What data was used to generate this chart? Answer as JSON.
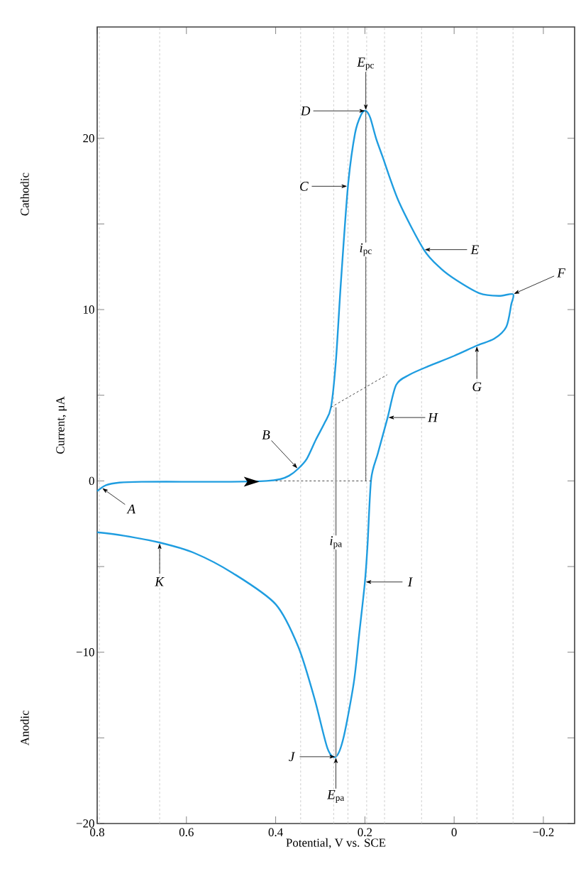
{
  "chart_data": {
    "type": "line",
    "xlabel": "Potential, V vs. SCE",
    "ylabel": "Current, μA",
    "xlim": [
      0.8,
      -0.27
    ],
    "ylim": [
      -20,
      26.5
    ],
    "xticks": [
      0.8,
      0.6,
      0.4,
      0.2,
      0,
      {
        "value": -0.2,
        "label": "−0.2"
      }
    ],
    "yticks": [
      {
        "value": -20,
        "label": "−20"
      },
      {
        "value": -15,
        "label": null
      },
      {
        "value": -10,
        "label": "−10"
      },
      {
        "value": -5,
        "label": null
      },
      0,
      {
        "value": 5,
        "label": null
      },
      10,
      {
        "value": 15,
        "label": null
      },
      20
    ],
    "series": [
      {
        "color": "#1f9de0",
        "x": [
          0.8,
          0.78,
          0.75,
          0.7,
          0.6,
          0.5,
          0.42,
          0.39,
          0.37,
          0.35,
          0.33,
          0.31,
          0.29,
          0.276,
          0.265,
          0.254,
          0.238,
          0.222,
          0.208,
          0.198,
          0.188,
          0.175,
          0.16,
          0.124,
          0.068,
          0.03,
          -0.006,
          -0.057,
          -0.1,
          -0.132,
          -0.128,
          -0.117,
          -0.09,
          -0.051,
          0.0,
          0.057,
          0.1,
          0.13,
          0.149,
          0.171,
          0.186,
          0.194,
          0.2,
          0.213,
          0.225,
          0.248,
          0.265,
          0.284,
          0.313,
          0.349,
          0.4,
          0.495,
          0.583,
          0.66,
          0.74,
          0.8
        ],
        "values": [
          -0.6,
          -0.25,
          -0.1,
          -0.05,
          -0.05,
          -0.05,
          0,
          0.1,
          0.3,
          0.7,
          1.3,
          2.4,
          3.4,
          4.3,
          7,
          11.5,
          17.2,
          20.3,
          21.4,
          21.6,
          21.2,
          20.0,
          18.9,
          16.3,
          13.5,
          12.4,
          11.7,
          10.95,
          10.8,
          10.9,
          10.3,
          9.0,
          8.3,
          7.9,
          7.3,
          6.7,
          6.2,
          5.6,
          3.7,
          1.6,
          0.1,
          -3.7,
          -5.9,
          -9,
          -11.8,
          -15.0,
          -16.1,
          -15.6,
          -12.7,
          -9.7,
          -7.2,
          -5.4,
          -4.2,
          -3.6,
          -3.2,
          -3.0
        ]
      },
      {
        "color": "#333333",
        "line_style": "dashed",
        "x": [
          0.4,
          0.186
        ],
        "values": [
          0,
          0
        ]
      },
      {
        "color": "#333333",
        "line_style": "dashed",
        "x": [
          0.276,
          0.15
        ],
        "values": [
          4.3,
          6.2
        ]
      },
      {
        "color": "#333333",
        "line_style": "solid",
        "x": [
          0.198,
          0.198
        ],
        "values": [
          0,
          21.6
        ]
      },
      {
        "color": "#a0a0a0",
        "line_style": "solid",
        "x": [
          0.265,
          0.265
        ],
        "values": [
          4.3,
          -16.1
        ]
      }
    ],
    "ref_lines": [
      {
        "axis": "x",
        "value": 0.795,
        "color": "#c8c8c8",
        "line_style": "dashed"
      },
      {
        "axis": "x",
        "value": 0.66,
        "color": "#c8c8c8",
        "line_style": "dashed"
      },
      {
        "axis": "x",
        "value": 0.344,
        "color": "#c8c8c8",
        "line_style": "dashed"
      },
      {
        "axis": "x",
        "value": 0.27,
        "color": "#c8c8c8",
        "line_style": "dashed"
      },
      {
        "axis": "x",
        "value": 0.238,
        "color": "#c8c8c8",
        "line_style": "dashed"
      },
      {
        "axis": "x",
        "value": 0.196,
        "color": "#c8c8c8",
        "line_style": "dashed"
      },
      {
        "axis": "x",
        "value": 0.156,
        "color": "#c8c8c8",
        "line_style": "dashed"
      },
      {
        "axis": "x",
        "value": 0.073,
        "color": "#c8c8c8",
        "line_style": "dashed"
      },
      {
        "axis": "x",
        "value": -0.051,
        "color": "#c8c8c8",
        "line_style": "dashed"
      },
      {
        "axis": "x",
        "value": -0.132,
        "color": "#c8c8c8",
        "line_style": "dashed"
      }
    ],
    "annotations": [
      {
        "text": "*A*",
        "x": 0.79,
        "y": -0.4
      },
      {
        "text": "*B*",
        "x": 0.35,
        "y": 0.7
      },
      {
        "text": "*C*",
        "x": 0.238,
        "y": 17.2
      },
      {
        "text": "*D*",
        "x": 0.198,
        "y": 21.6
      },
      {
        "text": "*E*$_{pc}$",
        "x": 0.198,
        "y": 21.6
      },
      {
        "text": "*E*",
        "x": 0.068,
        "y": 13.5
      },
      {
        "text": "*F*",
        "x": -0.132,
        "y": 10.9
      },
      {
        "text": "*G*",
        "x": -0.051,
        "y": 7.9
      },
      {
        "text": "*H*",
        "x": 0.149,
        "y": 3.7
      },
      {
        "text": "*I*",
        "x": 0.2,
        "y": -5.9
      },
      {
        "text": "*J*",
        "x": 0.265,
        "y": -16.1
      },
      {
        "text": "*E*$_{pa}$",
        "x": 0.265,
        "y": -16.1
      },
      {
        "text": "*K*",
        "x": 0.66,
        "y": -3.6
      },
      {
        "text": "*i*$_{pc}$",
        "x": 0.198,
        "y": 13.5
      },
      {
        "text": "*i*$_{pa}$",
        "x": 0.265,
        "y": -3.6
      },
      "Cathodic",
      "Anodic"
    ]
  }
}
